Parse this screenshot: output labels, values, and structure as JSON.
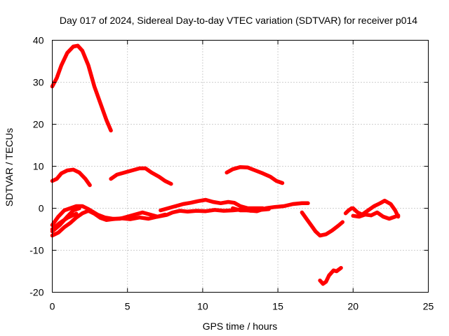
{
  "chart_data": {
    "type": "line",
    "title": "Day 017 of 2024, Sidereal Day-to-day VTEC variation (SDTVAR) for receiver p014",
    "xlabel": "GPS time / hours",
    "ylabel": "SDTVAR / TECUs",
    "xlim": [
      0,
      25
    ],
    "ylim": [
      -20,
      40
    ],
    "xticks": [
      0,
      5,
      10,
      15,
      20,
      25
    ],
    "yticks": [
      -20,
      -10,
      0,
      10,
      20,
      30,
      40
    ],
    "grid": true,
    "color": "#ff0000",
    "series": [
      {
        "name": "arc-1",
        "points": [
          [
            0,
            29
          ],
          [
            0.3,
            31
          ],
          [
            0.6,
            34
          ],
          [
            1.0,
            37
          ],
          [
            1.4,
            38.5
          ],
          [
            1.7,
            38.7
          ],
          [
            2.0,
            37.5
          ],
          [
            2.4,
            34
          ],
          [
            2.8,
            29
          ],
          [
            3.2,
            25
          ],
          [
            3.6,
            21
          ],
          [
            3.9,
            18.5
          ]
        ]
      },
      {
        "name": "arc-2",
        "points": [
          [
            0,
            6.5
          ],
          [
            0.3,
            7
          ],
          [
            0.6,
            8.3
          ],
          [
            1.0,
            9
          ],
          [
            1.4,
            9.2
          ],
          [
            1.8,
            8.5
          ],
          [
            2.2,
            7
          ],
          [
            2.5,
            5.5
          ]
        ]
      },
      {
        "name": "arc-3",
        "points": [
          [
            3.9,
            7
          ],
          [
            4.3,
            8
          ],
          [
            4.8,
            8.5
          ],
          [
            5.3,
            9
          ],
          [
            5.8,
            9.5
          ],
          [
            6.2,
            9.5
          ],
          [
            6.6,
            8.5
          ],
          [
            7.1,
            7.5
          ],
          [
            7.5,
            6.5
          ],
          [
            7.9,
            5.8
          ]
        ]
      },
      {
        "name": "arc-4",
        "points": [
          [
            11.6,
            8.5
          ],
          [
            12.0,
            9.3
          ],
          [
            12.5,
            9.8
          ],
          [
            13.0,
            9.7
          ],
          [
            13.5,
            9.0
          ],
          [
            14.0,
            8.3
          ],
          [
            14.5,
            7.5
          ],
          [
            14.9,
            6.5
          ],
          [
            15.3,
            6
          ]
        ]
      },
      {
        "name": "arc-5",
        "points": [
          [
            0,
            -4
          ],
          [
            0.4,
            -2
          ],
          [
            0.8,
            -0.5
          ],
          [
            1.2,
            0
          ],
          [
            1.6,
            0.5
          ],
          [
            2.0,
            0.5
          ],
          [
            2.4,
            -0.2
          ],
          [
            3.0,
            -1.5
          ],
          [
            3.5,
            -2.2
          ],
          [
            4.0,
            -2.5
          ],
          [
            4.5,
            -2.5
          ],
          [
            5.0,
            -2
          ],
          [
            5.5,
            -1.5
          ],
          [
            6.0,
            -1
          ],
          [
            6.5,
            -1.5
          ],
          [
            7.0,
            -2
          ],
          [
            7.5,
            -1.5
          ]
        ]
      },
      {
        "name": "arc-6",
        "points": [
          [
            0,
            -6.5
          ],
          [
            0.4,
            -5.8
          ],
          [
            0.8,
            -4.5
          ],
          [
            1.2,
            -3.5
          ],
          [
            1.6,
            -2.2
          ],
          [
            2.0,
            -1.2
          ],
          [
            2.4,
            -0.6
          ],
          [
            2.8,
            -1.3
          ],
          [
            3.2,
            -2.3
          ],
          [
            3.6,
            -2.8
          ],
          [
            4.0,
            -2.6
          ],
          [
            4.6,
            -2.4
          ],
          [
            5.2,
            -2.6
          ],
          [
            5.8,
            -2.2
          ],
          [
            6.4,
            -2.5
          ],
          [
            7.0,
            -2.0
          ],
          [
            7.6,
            -1.6
          ],
          [
            8.0,
            -1.0
          ],
          [
            8.5,
            -0.6
          ],
          [
            9.0,
            -0.8
          ],
          [
            9.6,
            -0.6
          ],
          [
            10.2,
            -0.7
          ],
          [
            10.8,
            -0.4
          ],
          [
            11.4,
            -0.6
          ],
          [
            12.0,
            -0.5
          ],
          [
            12.6,
            -0.3
          ],
          [
            13.2,
            -0.6
          ],
          [
            13.8,
            -0.4
          ],
          [
            14.4,
            -0.2
          ]
        ]
      },
      {
        "name": "arc-7",
        "points": [
          [
            0,
            -5.5
          ],
          [
            0.5,
            -4
          ],
          [
            1.0,
            -2
          ],
          [
            1.4,
            -0.5
          ],
          [
            1.8,
            0
          ]
        ]
      },
      {
        "name": "arc-8",
        "points": [
          [
            0,
            -5
          ],
          [
            0.5,
            -3.5
          ],
          [
            1.0,
            -2.3
          ],
          [
            1.6,
            -1.3
          ]
        ]
      },
      {
        "name": "arc-9",
        "points": [
          [
            7.2,
            -0.5
          ],
          [
            7.7,
            0
          ],
          [
            8.2,
            0.5
          ],
          [
            8.7,
            1
          ],
          [
            9.2,
            1.3
          ],
          [
            9.7,
            1.7
          ],
          [
            10.2,
            2
          ],
          [
            10.7,
            1.5
          ],
          [
            11.2,
            1.2
          ],
          [
            11.7,
            1.5
          ],
          [
            12.1,
            1.3
          ],
          [
            12.5,
            0.5
          ],
          [
            13.0,
            0
          ],
          [
            13.5,
            0
          ],
          [
            14.0,
            0
          ]
        ]
      },
      {
        "name": "arc-10",
        "points": [
          [
            12.0,
            0
          ],
          [
            12.5,
            -0.5
          ],
          [
            13.0,
            -0.5
          ],
          [
            13.6,
            -0.7
          ],
          [
            14.2,
            0
          ],
          [
            14.8,
            0.3
          ],
          [
            15.4,
            0.5
          ],
          [
            16.0,
            1.0
          ],
          [
            16.6,
            1.2
          ],
          [
            17.0,
            1.2
          ]
        ]
      },
      {
        "name": "arc-11",
        "points": [
          [
            16.6,
            -1
          ],
          [
            16.9,
            -2.5
          ],
          [
            17.2,
            -4
          ],
          [
            17.5,
            -5.5
          ],
          [
            17.8,
            -6.5
          ],
          [
            18.2,
            -6.2
          ],
          [
            18.6,
            -5.3
          ],
          [
            19.0,
            -4.2
          ],
          [
            19.3,
            -3.3
          ]
        ]
      },
      {
        "name": "arc-12",
        "points": [
          [
            19.5,
            -1.2
          ],
          [
            19.7,
            -0.5
          ],
          [
            19.9,
            0
          ]
        ]
      },
      {
        "name": "arc-13",
        "points": [
          [
            17.8,
            -17.2
          ],
          [
            18.0,
            -18
          ],
          [
            18.2,
            -17.5
          ],
          [
            18.4,
            -16
          ],
          [
            18.7,
            -14.8
          ],
          [
            18.9,
            -15
          ],
          [
            19.2,
            -14.2
          ]
        ]
      },
      {
        "name": "arc-14",
        "points": [
          [
            20.0,
            0
          ],
          [
            20.3,
            -1
          ],
          [
            20.6,
            -1.5
          ],
          [
            21.0,
            -0.5
          ],
          [
            21.4,
            0.5
          ],
          [
            21.8,
            1.2
          ],
          [
            22.1,
            1.8
          ],
          [
            22.5,
            1.0
          ],
          [
            22.8,
            -0.5
          ],
          [
            23.0,
            -2
          ]
        ]
      },
      {
        "name": "arc-15",
        "points": [
          [
            20.0,
            -1.8
          ],
          [
            20.4,
            -2
          ],
          [
            20.8,
            -1.5
          ],
          [
            21.2,
            -1.7
          ],
          [
            21.6,
            -1
          ],
          [
            22.0,
            -2
          ],
          [
            22.4,
            -2.5
          ],
          [
            22.8,
            -2
          ],
          [
            23.0,
            -1.7
          ]
        ]
      }
    ]
  }
}
